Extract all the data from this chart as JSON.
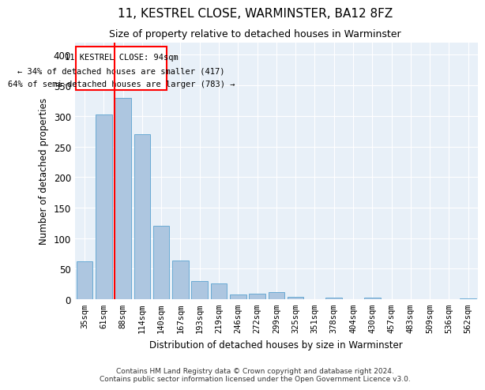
{
  "title": "11, KESTREL CLOSE, WARMINSTER, BA12 8FZ",
  "subtitle": "Size of property relative to detached houses in Warminster",
  "xlabel": "Distribution of detached houses by size in Warminster",
  "ylabel": "Number of detached properties",
  "categories": [
    "35sqm",
    "61sqm",
    "88sqm",
    "114sqm",
    "140sqm",
    "167sqm",
    "193sqm",
    "219sqm",
    "246sqm",
    "272sqm",
    "299sqm",
    "325sqm",
    "351sqm",
    "378sqm",
    "404sqm",
    "430sqm",
    "457sqm",
    "483sqm",
    "509sqm",
    "536sqm",
    "562sqm"
  ],
  "values": [
    62,
    303,
    330,
    270,
    120,
    63,
    30,
    26,
    8,
    9,
    12,
    4,
    0,
    3,
    0,
    2,
    0,
    0,
    0,
    0,
    1
  ],
  "bar_color": "#adc6e0",
  "bar_edgecolor": "#6aaad4",
  "vline_color": "red",
  "box_color": "red",
  "ylim": [
    0,
    420
  ],
  "yticks": [
    0,
    50,
    100,
    150,
    200,
    250,
    300,
    350,
    400
  ],
  "background_color": "#e8f0f8",
  "grid_color": "#ffffff",
  "property_line_label": "11 KESTREL CLOSE: 94sqm",
  "annotation_line1": "← 34% of detached houses are smaller (417)",
  "annotation_line2": "64% of semi-detached houses are larger (783) →",
  "footer_line1": "Contains HM Land Registry data © Crown copyright and database right 2024.",
  "footer_line2": "Contains public sector information licensed under the Open Government Licence v3.0."
}
